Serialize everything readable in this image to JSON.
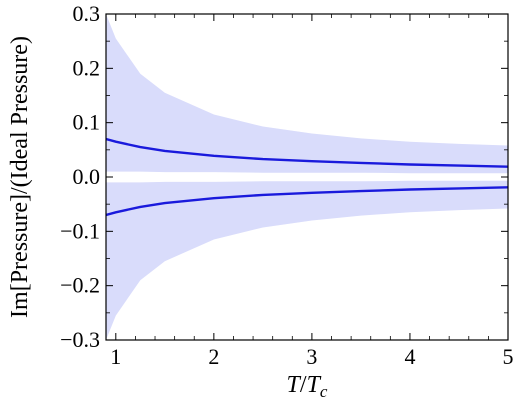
{
  "chart_data": {
    "type": "area",
    "xlabel_main": "T",
    "xlabel_sep": "/",
    "xlabel_den": "T",
    "xlabel_den_sub": "c",
    "ylabel": "Im[Pressure]/(Ideal Pressure)",
    "xlim": [
      0.9,
      5.0
    ],
    "ylim": [
      -0.3,
      0.3
    ],
    "x_ticks": [
      1,
      2,
      3,
      4,
      5
    ],
    "x_tick_labels": [
      "1",
      "2",
      "3",
      "4",
      "5"
    ],
    "y_ticks": [
      0.3,
      0.2,
      0.1,
      0.0,
      -0.1,
      -0.2,
      -0.3
    ],
    "y_tick_labels": [
      "0.3",
      "0.2",
      "0.1",
      "0.0",
      "−0.1",
      "−0.2",
      "−0.3"
    ],
    "grid": false,
    "legend": "none",
    "colors": {
      "line": "#1a1adc",
      "band": "#d9dcfb",
      "axis": "#000000"
    },
    "series": [
      {
        "role": "upper-line",
        "x": [
          0.9,
          1.0,
          1.25,
          1.5,
          2.0,
          2.5,
          3.0,
          3.5,
          4.0,
          4.5,
          5.0
        ],
        "y": [
          0.07,
          0.065,
          0.055,
          0.048,
          0.039,
          0.033,
          0.029,
          0.026,
          0.023,
          0.021,
          0.019
        ]
      },
      {
        "role": "lower-line",
        "x": [
          0.9,
          1.0,
          1.25,
          1.5,
          2.0,
          2.5,
          3.0,
          3.5,
          4.0,
          4.5,
          5.0
        ],
        "y": [
          -0.07,
          -0.065,
          -0.055,
          -0.048,
          -0.039,
          -0.033,
          -0.029,
          -0.026,
          -0.023,
          -0.021,
          -0.019
        ]
      }
    ],
    "bands": [
      {
        "role": "upper-band",
        "x": [
          0.9,
          1.0,
          1.25,
          1.5,
          2.0,
          2.5,
          3.0,
          3.5,
          4.0,
          4.5,
          5.0
        ],
        "lower": [
          0.01,
          0.01,
          0.01,
          0.009,
          0.009,
          0.008,
          0.008,
          0.008,
          0.007,
          0.007,
          0.007
        ],
        "upper": [
          0.3,
          0.255,
          0.19,
          0.155,
          0.115,
          0.093,
          0.08,
          0.071,
          0.065,
          0.061,
          0.058
        ]
      },
      {
        "role": "lower-band",
        "x": [
          0.9,
          1.0,
          1.25,
          1.5,
          2.0,
          2.5,
          3.0,
          3.5,
          4.0,
          4.5,
          5.0
        ],
        "lower": [
          -0.3,
          -0.255,
          -0.19,
          -0.155,
          -0.115,
          -0.093,
          -0.08,
          -0.071,
          -0.065,
          -0.061,
          -0.058
        ],
        "upper": [
          -0.01,
          -0.01,
          -0.01,
          -0.009,
          -0.009,
          -0.008,
          -0.008,
          -0.008,
          -0.007,
          -0.007,
          -0.007
        ]
      }
    ]
  }
}
